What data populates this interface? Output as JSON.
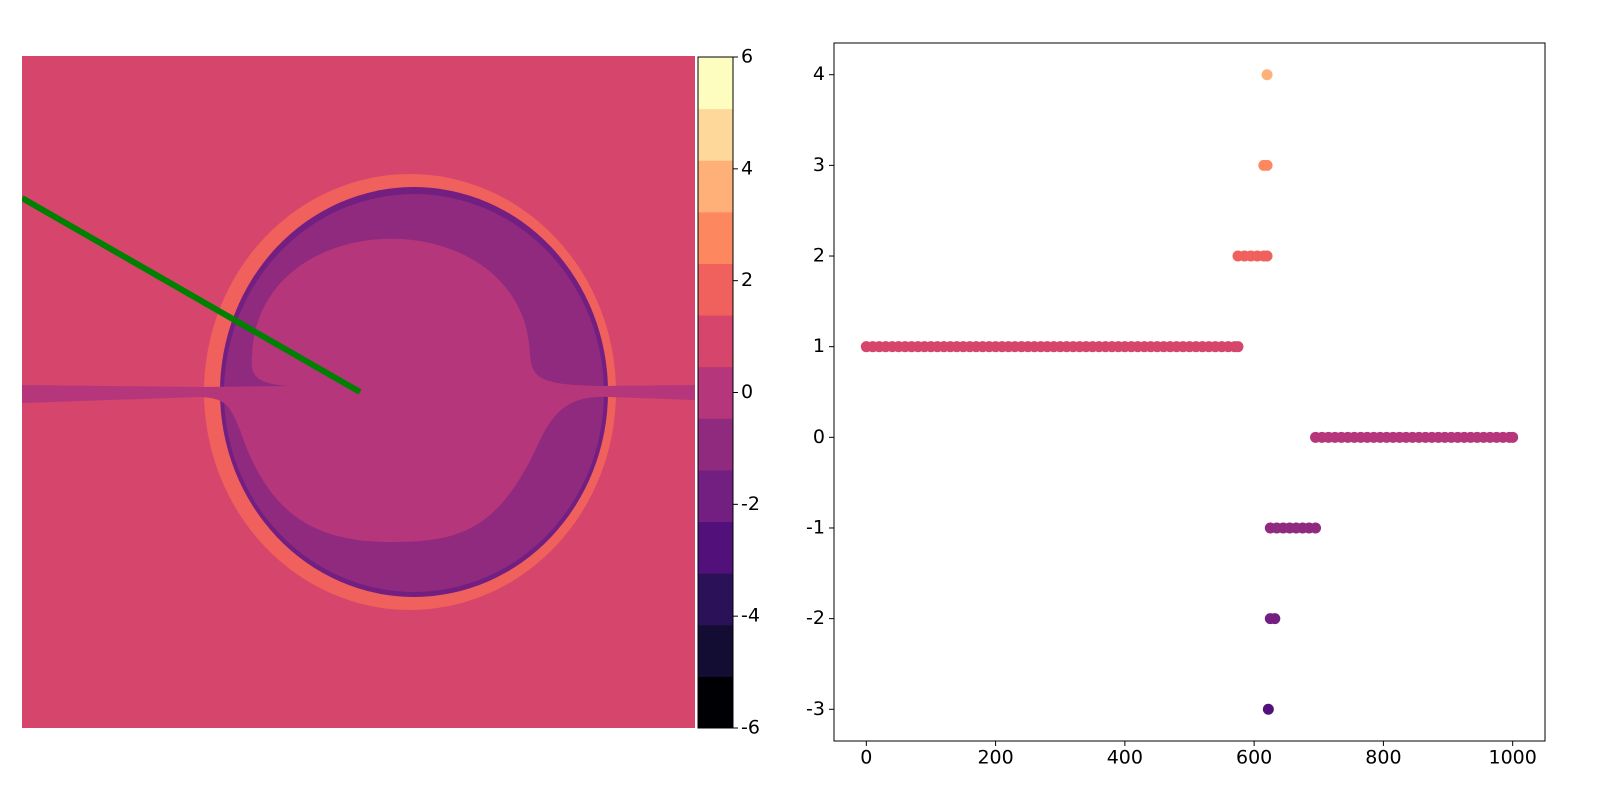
{
  "chart_data": [
    {
      "type": "image",
      "clim": [
        -6,
        6
      ],
      "cticks": [
        -6,
        -4,
        -2,
        0,
        2,
        4,
        6
      ],
      "cmap_colors": [
        "#000004",
        "#130d34",
        "#2b1158",
        "#52107a",
        "#721f81",
        "#8f2a7f",
        "#b5367a",
        "#d6456b",
        "#f0605d",
        "#fd8860",
        "#feb078",
        "#fed89a",
        "#fcfdbf"
      ],
      "region_values": [
        1,
        2,
        -2,
        -1,
        0
      ],
      "line_color": "#008000"
    },
    {
      "type": "scatter",
      "xlim": [
        -50,
        1050
      ],
      "ylim": [
        -3.35,
        4.35
      ],
      "xticks": [
        0,
        200,
        400,
        600,
        800,
        1000
      ],
      "yticks": [
        -3,
        -2,
        -1,
        0,
        1,
        2,
        3,
        4
      ],
      "x": [
        0,
        10,
        20,
        30,
        40,
        50,
        60,
        70,
        80,
        90,
        100,
        110,
        120,
        130,
        140,
        150,
        160,
        170,
        180,
        190,
        200,
        210,
        220,
        230,
        240,
        250,
        260,
        270,
        280,
        290,
        300,
        310,
        320,
        330,
        340,
        350,
        360,
        370,
        380,
        390,
        400,
        410,
        420,
        430,
        440,
        450,
        460,
        470,
        480,
        490,
        500,
        510,
        520,
        530,
        540,
        550,
        560,
        570,
        575,
        575,
        585,
        595,
        605,
        615,
        620,
        615,
        620,
        620,
        622,
        625,
        632,
        625,
        635,
        645,
        655,
        665,
        675,
        685,
        695,
        695,
        705,
        715,
        725,
        735,
        745,
        755,
        765,
        775,
        785,
        795,
        805,
        815,
        825,
        835,
        845,
        855,
        865,
        875,
        885,
        895,
        905,
        915,
        925,
        935,
        945,
        955,
        965,
        975,
        985,
        995,
        1000
      ],
      "y": [
        1,
        1,
        1,
        1,
        1,
        1,
        1,
        1,
        1,
        1,
        1,
        1,
        1,
        1,
        1,
        1,
        1,
        1,
        1,
        1,
        1,
        1,
        1,
        1,
        1,
        1,
        1,
        1,
        1,
        1,
        1,
        1,
        1,
        1,
        1,
        1,
        1,
        1,
        1,
        1,
        1,
        1,
        1,
        1,
        1,
        1,
        1,
        1,
        1,
        1,
        1,
        1,
        1,
        1,
        1,
        1,
        1,
        1,
        1,
        2,
        2,
        2,
        2,
        2,
        2,
        3,
        3,
        4,
        -3,
        -2,
        -2,
        -1,
        -1,
        -1,
        -1,
        -1,
        -1,
        -1,
        -1,
        0,
        0,
        0,
        0,
        0,
        0,
        0,
        0,
        0,
        0,
        0,
        0,
        0,
        0,
        0,
        0,
        0,
        0,
        0,
        0,
        0,
        0,
        0,
        0,
        0,
        0,
        0,
        0,
        0,
        0,
        0,
        0
      ]
    }
  ]
}
